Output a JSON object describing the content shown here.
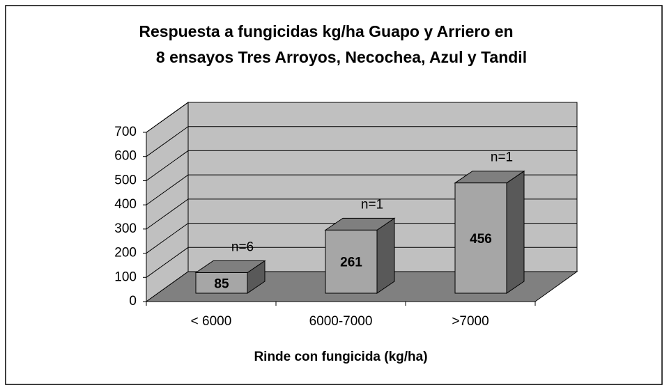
{
  "chart_data": {
    "type": "bar3d",
    "title": [
      "Respuesta a fungicidas kg/ha Guapo y Arriero en",
      "8 ensayos Tres Arroyos, Necochea, Azul y Tandil"
    ],
    "categories": [
      "< 6000",
      "6000-7000",
      ">7000"
    ],
    "values": [
      85,
      261,
      456
    ],
    "annotations": [
      "n=6",
      "n=1",
      "n=1"
    ],
    "x_label": "Rinde con fungicida (kg/ha)",
    "ylim": [
      0,
      700
    ],
    "yticks": [
      0,
      100,
      200,
      300,
      400,
      500,
      600,
      700
    ],
    "grid": true,
    "colors": {
      "bar_front": "#a6a6a6",
      "bar_top": "#7f7f7f",
      "bar_side": "#595959",
      "wall": "#c0c0c0",
      "floor": "#808080"
    }
  }
}
